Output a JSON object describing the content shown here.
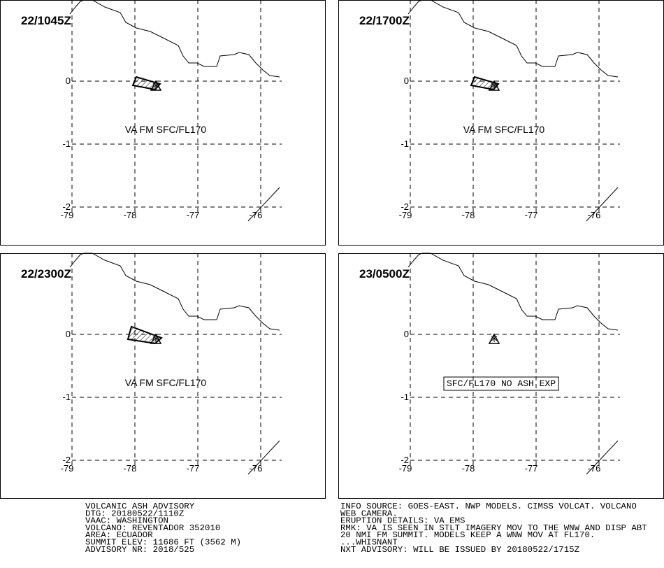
{
  "axes": {
    "xticks": [
      -79,
      -78,
      -77,
      -76
    ],
    "yticks": [
      0,
      -1,
      -2
    ]
  },
  "panels": [
    {
      "title": "22/1045Z",
      "annotation": "VA FM SFC/FL170",
      "ash": true,
      "boxed": false
    },
    {
      "title": "22/1700Z",
      "annotation": "VA FM SFC/FL170",
      "ash": true,
      "boxed": false
    },
    {
      "title": "22/2300Z",
      "annotation": "VA FM SFC/FL170",
      "ash": true,
      "boxed": false
    },
    {
      "title": "23/0500Z",
      "annotation": "SFC/FL170 NO ASH EXP",
      "ash": false,
      "boxed": true
    }
  ],
  "footer": {
    "left": [
      "VOLCANIC ASH ADVISORY",
      "DTG: 20180522/1110Z",
      "VAAC: WASHINGTON",
      "VOLCANO: REVENTADOR 352010",
      "AREA: ECUADOR",
      "SUMMIT ELEV: 11686 FT (3562 M)",
      "ADVISORY NR: 2018/525"
    ],
    "right": [
      "INFO SOURCE: GOES-EAST. NWP MODELS. CIMSS VOLCAT. VOLCANO",
      "WEB CAMERA.",
      "ERUPTION DETAILS: VA EMS",
      "RMK: VA IS SEEN IN STLT IMAGERY MOV TO THE WNW AND DISP ABT",
      "20 NMI FM SUMMIT. MODELS KEEP A WNW MOV AT FL170.",
      "...WHISNANT",
      "NXT ADVISORY: WILL BE ISSUED BY 20180522/1715Z"
    ]
  }
}
